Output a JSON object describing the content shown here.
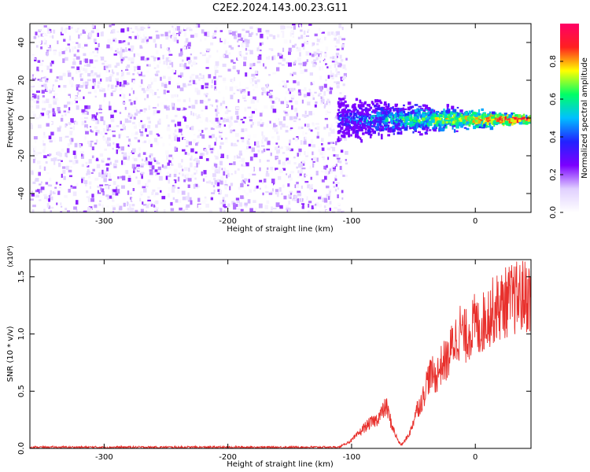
{
  "title": "C2E2.2024.143.00.23.G11",
  "colors": {
    "background": "#ffffff",
    "axis": "#000000",
    "snr_line": "#e8302c"
  },
  "colorbar": {
    "label": "Normalized spectral amplitude",
    "ticks": [
      "0.0",
      "0.2",
      "0.4",
      "0.6",
      "0.8"
    ],
    "tick_values": [
      0.0,
      0.2,
      0.4,
      0.6,
      0.8
    ],
    "range": [
      0,
      1
    ],
    "colormap": [
      "#ffffff",
      "#e0d0ff",
      "#7b00ff",
      "#2222ff",
      "#00c0ff",
      "#00ff66",
      "#ffff00",
      "#ff2020",
      "#ff0066"
    ]
  },
  "chart_data": [
    {
      "type": "heatmap",
      "title": "C2E2.2024.143.00.23.G11",
      "xlabel": "Height of straight line (km)",
      "ylabel": "Frequency (Hz)",
      "xlim": [
        -360,
        45
      ],
      "ylim": [
        -50,
        50
      ],
      "xticks": [
        -300,
        -200,
        -100,
        0
      ],
      "xtick_labels": [
        "-300",
        "-200",
        "-100",
        "0"
      ],
      "yticks": [
        -40,
        -20,
        0,
        20,
        40
      ],
      "ytick_labels": [
        "-40",
        "-20",
        "0",
        "20",
        "40"
      ],
      "features": {
        "noise_region_x": [
          -360,
          -105
        ],
        "signal_region_x": [
          -112,
          45
        ],
        "signal_center_freq_hz": 0,
        "peak_amplitude": 1.0
      }
    },
    {
      "type": "line",
      "xlabel": "Height of straight line (km)",
      "ylabel": "SNR (10 * v/v)",
      "y_multiplier": "(x10⁴)",
      "xlim": [
        -360,
        45
      ],
      "ylim": [
        0,
        1.65
      ],
      "xticks": [
        -300,
        -200,
        -100,
        0
      ],
      "xtick_labels": [
        "-300",
        "-200",
        "-100",
        "0"
      ],
      "yticks": [
        0.0,
        0.5,
        1.0,
        1.5
      ],
      "ytick_labels": [
        "0.0",
        "0.5",
        "1.0",
        "1.5"
      ],
      "series": [
        {
          "x": [
            -360,
            -300,
            -200,
            -110,
            -100,
            -95,
            -90,
            -85,
            -80,
            -75,
            -72,
            -70,
            -68,
            -65,
            -62,
            -60,
            -58,
            -55,
            -52,
            -50,
            -48,
            -45,
            -42,
            -40,
            -38,
            -35,
            -32,
            -30,
            -28,
            -25,
            -22,
            -20,
            -18,
            -16,
            -14,
            -12,
            -10,
            -8,
            -5,
            -2,
            0,
            3,
            5,
            8,
            10,
            12,
            14,
            16,
            20,
            25,
            30,
            35,
            40,
            45
          ],
          "y": [
            0.01,
            0.01,
            0.01,
            0.01,
            0.07,
            0.12,
            0.18,
            0.22,
            0.25,
            0.32,
            0.37,
            0.3,
            0.22,
            0.13,
            0.06,
            0.03,
            0.05,
            0.1,
            0.16,
            0.24,
            0.33,
            0.38,
            0.45,
            0.55,
            0.62,
            0.65,
            0.62,
            0.67,
            0.72,
            0.76,
            0.78,
            0.85,
            0.93,
            0.95,
            0.99,
            1.04,
            1.0,
            0.97,
            1.02,
            1.06,
            1.1,
            1.04,
            1.08,
            1.13,
            1.17,
            1.18,
            1.2,
            1.22,
            1.24,
            1.28,
            1.3,
            1.32,
            1.33,
            1.33
          ]
        }
      ]
    }
  ]
}
